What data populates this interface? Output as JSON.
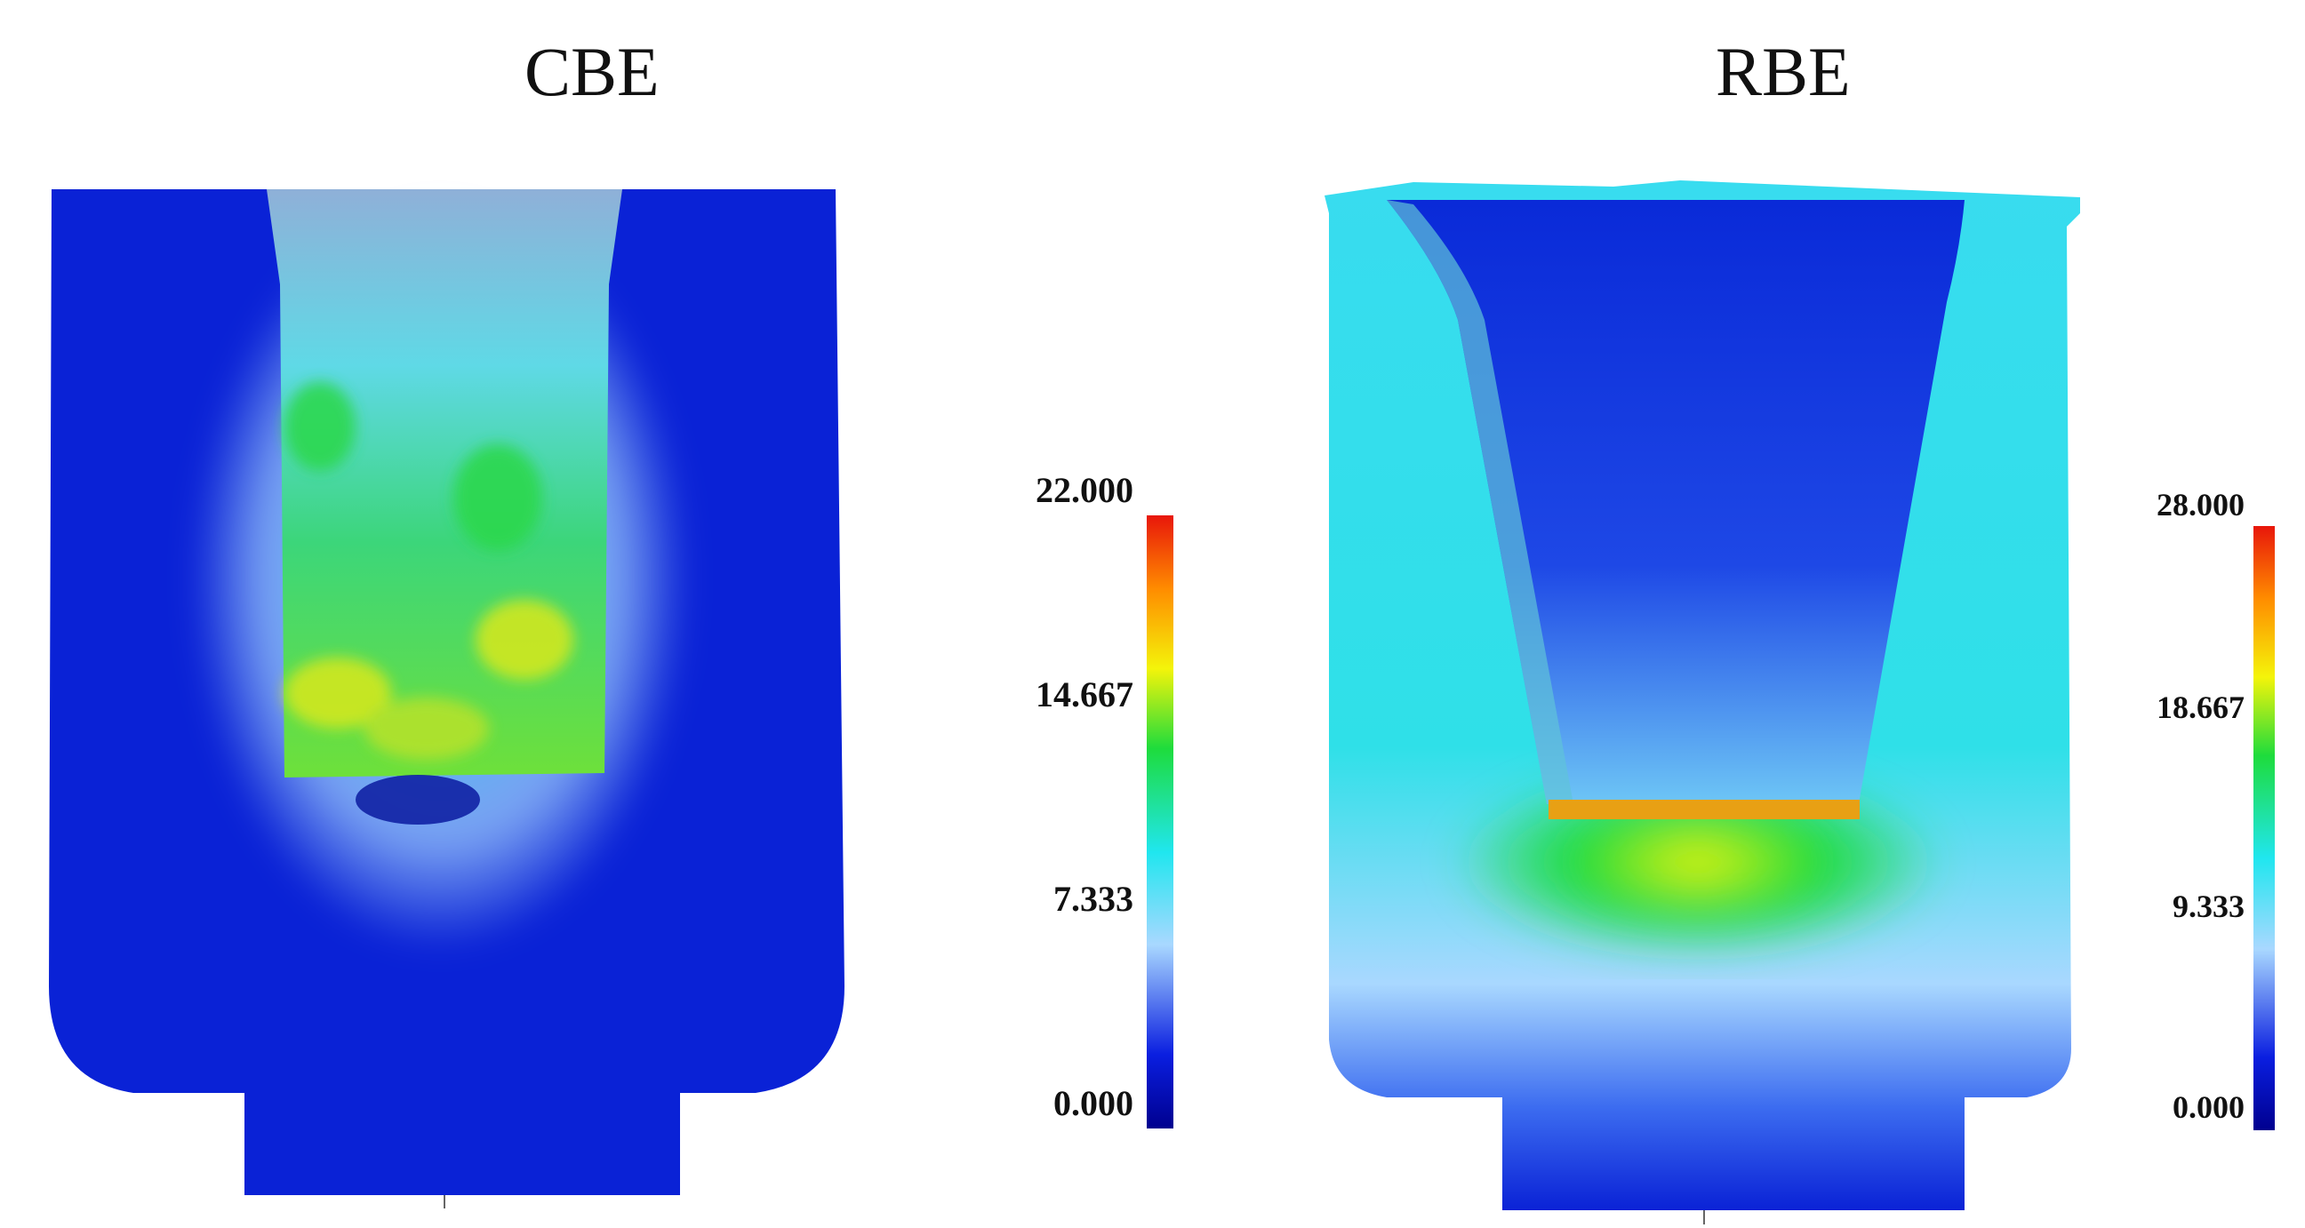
{
  "panels": [
    {
      "title": "CBE",
      "legend": {
        "values": [
          "22.000",
          "14.667",
          "7.333",
          "0.000"
        ]
      }
    },
    {
      "title": "RBE",
      "legend": {
        "values": [
          "28.000",
          "18.667",
          "9.333",
          "0.000"
        ]
      }
    }
  ],
  "colormap": {
    "stops": [
      "#00008f",
      "#0a1ee0",
      "#a9d8ff",
      "#20e6ef",
      "#1edc3c",
      "#f4f40a",
      "#ff8c00",
      "#e8160a"
    ]
  }
}
